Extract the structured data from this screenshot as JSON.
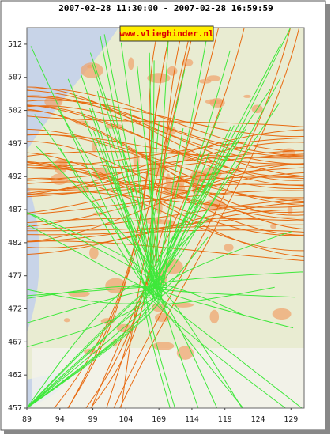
{
  "chart_data": {
    "type": "map",
    "title": "2007-02-28 11:30:00 - 2007-02-28 16:59:59",
    "watermark": "www.vlieghinder.nl",
    "xlim": [
      89,
      131
    ],
    "xticks": [
      89,
      94,
      99,
      104,
      109,
      114,
      119,
      124,
      129
    ],
    "ylim": [
      457,
      514.5
    ],
    "yticks": [
      512,
      507,
      502,
      497,
      492,
      487,
      482,
      477,
      472,
      467,
      462,
      457
    ],
    "grid": false
  }
}
